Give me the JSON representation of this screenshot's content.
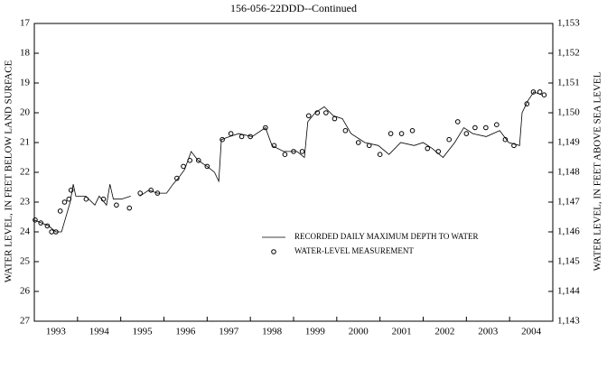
{
  "chart_data": {
    "type": "line",
    "title": "156-056-22DDD--Continued",
    "ylabel": "WATER LEVEL, IN FEET BELOW LAND SURFACE",
    "y2label": "WATER LEVEL, IN FEET ABOVE SEA LEVEL",
    "categories": [
      "1993",
      "1994",
      "1995",
      "1996",
      "1997",
      "1998",
      "1999",
      "2000",
      "2001",
      "2002",
      "2003",
      "2004"
    ],
    "xlim": [
      1993,
      2005
    ],
    "xticks": [
      1993,
      1994,
      1995,
      1996,
      1997,
      1998,
      1999,
      2000,
      2001,
      2002,
      2003,
      2004,
      2005
    ],
    "ylim": [
      17,
      27
    ],
    "invert_y": true,
    "yticks": [
      17,
      18,
      19,
      20,
      21,
      22,
      23,
      24,
      25,
      26,
      27
    ],
    "y2lim": [
      1143,
      1153
    ],
    "y2ticks": [
      {
        "value": 1153,
        "label": "1,153"
      },
      {
        "value": 1152,
        "label": "1,152"
      },
      {
        "value": 1151,
        "label": "1,151"
      },
      {
        "value": 1150,
        "label": "1,150"
      },
      {
        "value": 1149,
        "label": "1,149"
      },
      {
        "value": 1148,
        "label": "1,148"
      },
      {
        "value": 1147,
        "label": "1,147"
      },
      {
        "value": 1146,
        "label": "1,146"
      },
      {
        "value": 1145,
        "label": "1,145"
      },
      {
        "value": 1144,
        "label": "1,144"
      },
      {
        "value": 1143,
        "label": "1,143"
      }
    ],
    "legend": "lower center",
    "series": [
      {
        "name": "RECORDED DAILY MAXIMUM DEPTH TO WATER",
        "type": "line",
        "color": "#000000",
        "x": [
          1993.0,
          1993.17,
          1993.33,
          1993.5,
          1993.63,
          1993.75,
          1993.83,
          1993.9,
          1993.96,
          1994.19,
          1994.4,
          1994.5,
          1994.67,
          1994.75,
          1994.83,
          1995.02,
          1995.23,
          1995.3,
          1995.44,
          1995.65,
          1995.85,
          1996.06,
          1996.21,
          1996.33,
          1996.48,
          1996.63,
          1996.79,
          1997.0,
          1997.17,
          1997.27,
          1997.33,
          1997.52,
          1997.73,
          1998.04,
          1998.35,
          1998.5,
          1998.77,
          1999.08,
          1999.25,
          1999.33,
          1999.5,
          1999.71,
          1999.92,
          2000.13,
          2000.33,
          2000.65,
          2000.96,
          2001.21,
          2001.48,
          2001.79,
          2002.0,
          2002.21,
          2002.46,
          2002.73,
          2002.94,
          2003.15,
          2003.46,
          2003.77,
          2003.98,
          2004.23,
          2004.29,
          2004.42,
          2004.56,
          2004.75
        ],
        "values": [
          23.6,
          23.7,
          23.8,
          24.0,
          24.0,
          23.4,
          23.0,
          22.4,
          22.8,
          22.8,
          23.1,
          22.8,
          23.1,
          22.4,
          22.9,
          22.9,
          22.8,
          null,
          22.8,
          22.6,
          22.7,
          22.7,
          22.4,
          22.2,
          21.9,
          21.3,
          21.6,
          21.8,
          22.0,
          22.3,
          20.9,
          20.8,
          20.7,
          20.8,
          20.5,
          21.1,
          21.3,
          21.3,
          21.5,
          20.3,
          20.0,
          19.8,
          20.1,
          20.2,
          20.7,
          21.0,
          21.1,
          21.4,
          21.0,
          21.1,
          21.0,
          21.2,
          21.5,
          21.0,
          20.5,
          20.7,
          20.8,
          20.6,
          21.0,
          21.1,
          20.0,
          19.6,
          19.3,
          19.4
        ]
      },
      {
        "name": "WATER-LEVEL MEASUREMENT",
        "type": "scatter",
        "color": "#000000",
        "x": [
          1993.02,
          1993.15,
          1993.3,
          1993.4,
          1993.5,
          1993.6,
          1993.7,
          1993.8,
          1993.85,
          1994.2,
          1994.6,
          1994.9,
          1995.2,
          1995.45,
          1995.7,
          1995.85,
          1996.3,
          1996.45,
          1996.6,
          1996.8,
          1997.0,
          1997.35,
          1997.55,
          1997.8,
          1998.0,
          1998.35,
          1998.55,
          1998.8,
          1999.0,
          1999.2,
          1999.35,
          1999.55,
          1999.75,
          1999.95,
          2000.2,
          2000.5,
          2000.75,
          2001.0,
          2001.25,
          2001.5,
          2001.75,
          2002.1,
          2002.35,
          2002.6,
          2002.8,
          2003.0,
          2003.2,
          2003.45,
          2003.7,
          2003.9,
          2004.1,
          2004.4,
          2004.55,
          2004.7,
          2004.8
        ],
        "values": [
          23.6,
          23.7,
          23.8,
          24.0,
          24.0,
          23.3,
          23.0,
          22.9,
          22.6,
          22.9,
          22.9,
          23.1,
          23.2,
          22.7,
          22.6,
          22.7,
          22.2,
          21.8,
          21.6,
          21.6,
          21.8,
          20.9,
          20.7,
          20.8,
          20.8,
          20.5,
          21.1,
          21.4,
          21.3,
          21.3,
          20.1,
          20.0,
          20.0,
          20.2,
          20.6,
          21.0,
          21.1,
          21.4,
          20.7,
          20.7,
          20.6,
          21.2,
          21.3,
          20.9,
          20.3,
          20.7,
          20.5,
          20.5,
          20.4,
          20.9,
          21.1,
          19.7,
          19.3,
          19.3,
          19.4
        ]
      }
    ]
  }
}
